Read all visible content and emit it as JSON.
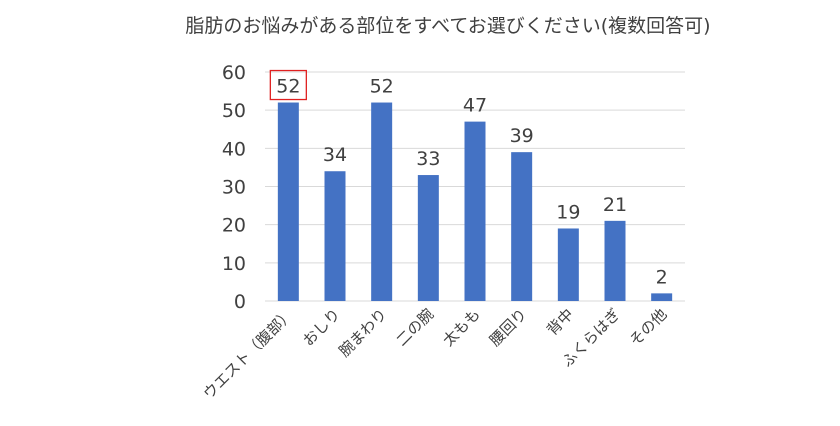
{
  "chart_data": {
    "type": "bar",
    "title": "脂肪のお悩みがある部位をすべてお選びください(複数回答可)",
    "categories": [
      "ウエスト（腹部）",
      "おしり",
      "腕まわり",
      "二の腕",
      "太もも",
      "腰回り",
      "背中",
      "ふくらはぎ",
      "その他"
    ],
    "values": [
      52,
      34,
      52,
      33,
      47,
      39,
      19,
      21,
      2
    ],
    "data_labels": [
      "52",
      "34",
      "52",
      "33",
      "47",
      "39",
      "19",
      "21",
      "2"
    ],
    "ylim": [
      0,
      60
    ],
    "yticks": [
      "0",
      "10",
      "20",
      "30",
      "40",
      "50",
      "60"
    ],
    "grid": true,
    "highlighted_label_index": 0,
    "colors": {
      "bar": "#4472C4",
      "grid": "#D9D9D9",
      "text": "#404040",
      "highlight_box": "#E02020"
    }
  }
}
